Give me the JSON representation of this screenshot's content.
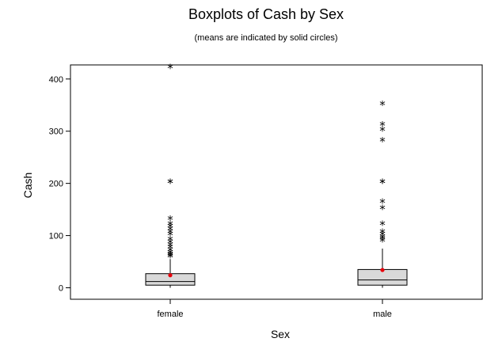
{
  "chart_data": {
    "type": "box",
    "title": "Boxplots of Cash by Sex",
    "subtitle": "(means are indicated by solid circles)",
    "xlabel": "Sex",
    "ylabel": "Cash",
    "ylim": [
      -22,
      427
    ],
    "yticks": [
      0,
      100,
      200,
      300,
      400
    ],
    "grid": false,
    "categories": [
      "female",
      "male"
    ],
    "boxes": [
      {
        "category": "female",
        "q1": 5,
        "median": 12,
        "q3": 27,
        "whisker_low": 0,
        "whisker_high": 55,
        "mean": 24,
        "outliers": [
          58,
          60,
          62,
          65,
          70,
          75,
          80,
          85,
          90,
          100,
          105,
          110,
          115,
          120,
          130,
          200,
          200,
          420
        ]
      },
      {
        "category": "male",
        "q1": 5,
        "median": 15,
        "q3": 35,
        "whisker_low": 0,
        "whisker_high": 75,
        "mean": 34,
        "outliers": [
          88,
          92,
          95,
          100,
          105,
          120,
          150,
          162,
          200,
          200,
          280,
          300,
          310,
          350
        ]
      }
    ],
    "colors": {
      "box_fill": "#d9d9d9",
      "mean_marker": "#e8000b",
      "stroke": "#000000"
    }
  }
}
